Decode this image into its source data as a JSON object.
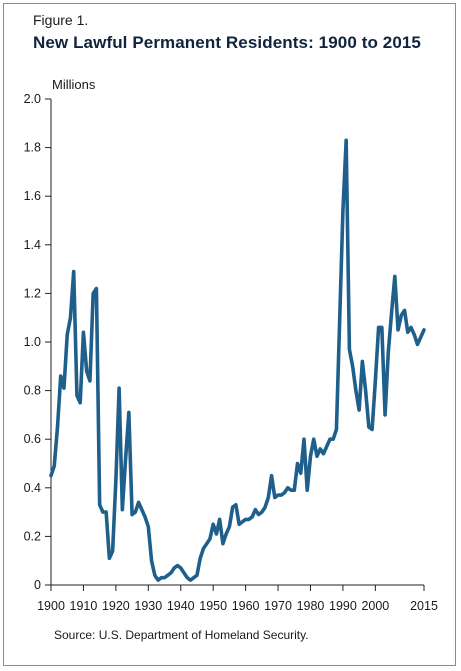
{
  "figure_label": "Figure 1.",
  "title": "New Lawful Permanent Residents: 1900 to 2015",
  "source": "Source: U.S. Department of Homeland Security.",
  "chart_data": {
    "type": "line",
    "unit_label": "Millions",
    "xlabel": "",
    "ylabel": "",
    "xlim": [
      1900,
      2015
    ],
    "ylim": [
      0,
      2.0
    ],
    "x_ticks": [
      1900,
      1910,
      1920,
      1930,
      1940,
      1950,
      1960,
      1970,
      1980,
      1990,
      2000,
      2015
    ],
    "x_tick_labels": [
      "1900",
      "1910",
      "1920",
      "1930",
      "1940",
      "1950",
      "1960",
      "1970",
      "1980",
      "1990",
      "2000",
      "2015"
    ],
    "y_ticks": [
      0,
      0.2,
      0.4,
      0.6,
      0.8,
      1.0,
      1.2,
      1.4,
      1.6,
      1.8,
      2.0
    ],
    "y_tick_labels": [
      "0",
      "0.2",
      "0.4",
      "0.6",
      "0.8",
      "1.0",
      "1.2",
      "1.4",
      "1.6",
      "1.8",
      "2.0"
    ],
    "grid": false,
    "series_color": "#1f5f8b",
    "series": [
      {
        "x": [
          1900,
          1901,
          1902,
          1903,
          1904,
          1905,
          1906,
          1907,
          1908,
          1909,
          1910,
          1911,
          1912,
          1913,
          1914,
          1915,
          1916,
          1917,
          1918,
          1919,
          1920,
          1921,
          1922,
          1923,
          1924,
          1925,
          1926,
          1927,
          1928,
          1929,
          1930,
          1931,
          1932,
          1933,
          1934,
          1935,
          1936,
          1937,
          1938,
          1939,
          1940,
          1941,
          1942,
          1943,
          1944,
          1945,
          1946,
          1947,
          1948,
          1949,
          1950,
          1951,
          1952,
          1953,
          1954,
          1955,
          1956,
          1957,
          1958,
          1959,
          1960,
          1961,
          1962,
          1963,
          1964,
          1965,
          1966,
          1967,
          1968,
          1969,
          1970,
          1971,
          1972,
          1973,
          1974,
          1975,
          1976,
          1977,
          1978,
          1979,
          1980,
          1981,
          1982,
          1983,
          1984,
          1985,
          1986,
          1987,
          1988,
          1989,
          1990,
          1991,
          1992,
          1993,
          1994,
          1995,
          1996,
          1997,
          1998,
          1999,
          2000,
          2001,
          2002,
          2003,
          2004,
          2005,
          2006,
          2007,
          2008,
          2009,
          2010,
          2011,
          2012,
          2013,
          2014,
          2015
        ],
        "values": [
          0.45,
          0.49,
          0.65,
          0.86,
          0.81,
          1.03,
          1.1,
          1.29,
          0.78,
          0.75,
          1.04,
          0.88,
          0.84,
          1.2,
          1.22,
          0.33,
          0.3,
          0.3,
          0.11,
          0.14,
          0.43,
          0.81,
          0.31,
          0.52,
          0.71,
          0.29,
          0.3,
          0.34,
          0.31,
          0.28,
          0.24,
          0.1,
          0.04,
          0.02,
          0.03,
          0.03,
          0.04,
          0.05,
          0.07,
          0.08,
          0.07,
          0.05,
          0.03,
          0.02,
          0.03,
          0.04,
          0.11,
          0.15,
          0.17,
          0.19,
          0.25,
          0.21,
          0.27,
          0.17,
          0.21,
          0.24,
          0.32,
          0.33,
          0.25,
          0.26,
          0.27,
          0.27,
          0.28,
          0.31,
          0.29,
          0.3,
          0.32,
          0.36,
          0.45,
          0.36,
          0.37,
          0.37,
          0.38,
          0.4,
          0.39,
          0.39,
          0.5,
          0.46,
          0.6,
          0.39,
          0.53,
          0.6,
          0.53,
          0.56,
          0.54,
          0.57,
          0.6,
          0.6,
          0.64,
          1.09,
          1.54,
          1.83,
          0.97,
          0.9,
          0.8,
          0.72,
          0.92,
          0.8,
          0.65,
          0.64,
          0.84,
          1.06,
          1.06,
          0.7,
          0.96,
          1.12,
          1.27,
          1.05,
          1.11,
          1.13,
          1.04,
          1.06,
          1.03,
          0.99,
          1.02,
          1.05
        ]
      }
    ]
  }
}
